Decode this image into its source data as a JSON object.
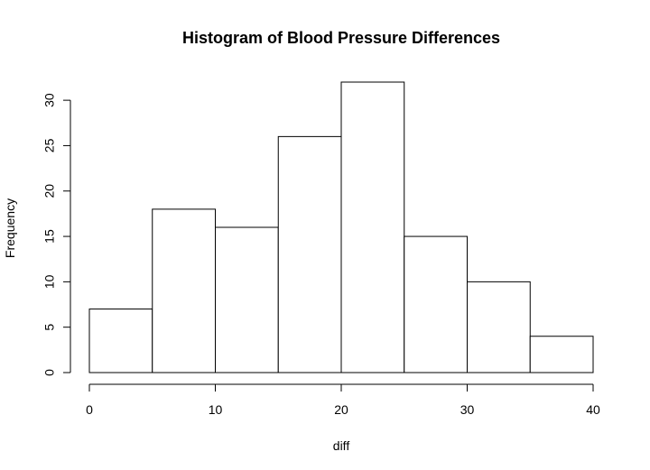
{
  "chart_data": {
    "type": "bar",
    "title": "Histogram of Blood Pressure Differences",
    "xlabel": "diff",
    "ylabel": "Frequency",
    "bins": [
      {
        "start": 0,
        "end": 5,
        "count": 7
      },
      {
        "start": 5,
        "end": 10,
        "count": 18
      },
      {
        "start": 10,
        "end": 15,
        "count": 16
      },
      {
        "start": 15,
        "end": 20,
        "count": 26
      },
      {
        "start": 20,
        "end": 25,
        "count": 32
      },
      {
        "start": 25,
        "end": 30,
        "count": 15
      },
      {
        "start": 30,
        "end": 35,
        "count": 10
      },
      {
        "start": 35,
        "end": 40,
        "count": 4
      }
    ],
    "xlim": [
      0,
      40
    ],
    "ylim": [
      0,
      32
    ],
    "x_ticks": [
      0,
      10,
      20,
      30,
      40
    ],
    "y_ticks": [
      0,
      5,
      10,
      15,
      20,
      25,
      30
    ],
    "grid": false,
    "legend": "none",
    "colors": {
      "bar_fill": "#ffffff",
      "bar_stroke": "#000000"
    }
  }
}
